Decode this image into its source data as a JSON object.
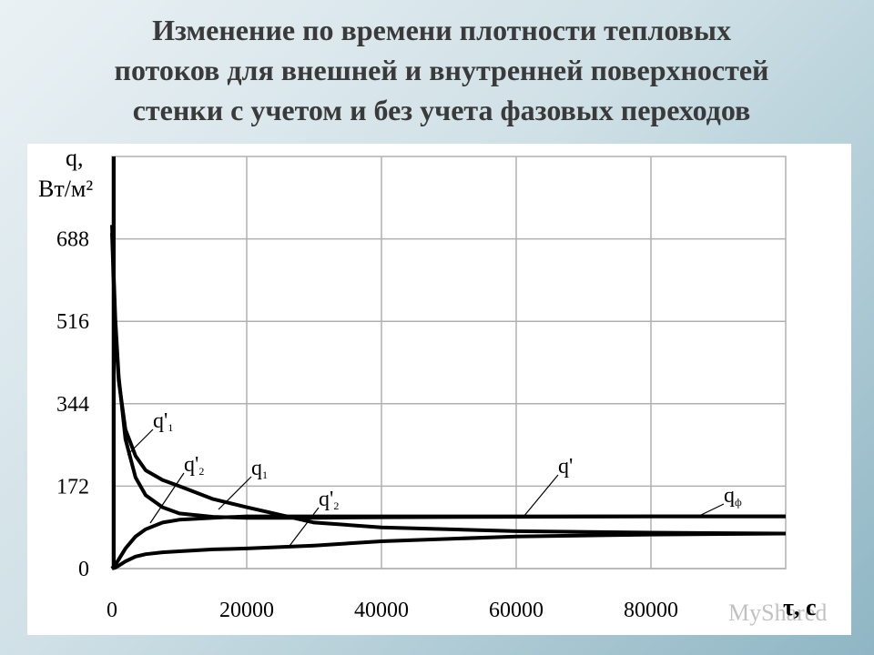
{
  "title_lines": [
    "Изменение по времени плотности тепловых",
    "потоков для внешней и внутренней поверхностей",
    "стенки с учетом и без учета фазовых переходов"
  ],
  "watermark": "MyShared",
  "chart_data": {
    "type": "line",
    "y_label_lines": [
      "q,",
      "Вт/м²"
    ],
    "x_label": "τ, с",
    "xlim": [
      0,
      100000
    ],
    "ylim": [
      0,
      860
    ],
    "xticks": [
      0,
      20000,
      40000,
      60000,
      80000
    ],
    "yticks": [
      0,
      172,
      344,
      516,
      688
    ],
    "grid": true,
    "series": [
      {
        "color": "#000000",
        "x": [
          0,
          500,
          1000,
          2000,
          3500,
          5000,
          7500,
          10000,
          15000,
          20000,
          30000,
          40000,
          60000,
          80000,
          100000
        ],
        "values": [
          717,
          520,
          400,
          270,
          190,
          153,
          128,
          115,
          108,
          106,
          106,
          107,
          108,
          109,
          109
        ]
      },
      {
        "color": "#000000",
        "x": [
          0,
          500,
          1000,
          2000,
          3500,
          5000,
          7500,
          10000,
          15000,
          20000,
          30000,
          40000,
          60000,
          80000,
          100000
        ],
        "values": [
          700,
          500,
          392,
          290,
          235,
          205,
          185,
          172,
          145,
          128,
          96,
          86,
          78,
          75,
          73
        ]
      },
      {
        "color": "#000000",
        "x": [
          0,
          500,
          1000,
          2000,
          3500,
          5000,
          7500,
          10000,
          15000,
          20000,
          30000,
          40000,
          60000,
          80000,
          100000
        ],
        "values": [
          0,
          8,
          19,
          42,
          67,
          82,
          96,
          102,
          106,
          109,
          109,
          109,
          109,
          109,
          109
        ]
      },
      {
        "color": "#000000",
        "x": [
          0,
          500,
          1000,
          2000,
          3500,
          5000,
          7500,
          10000,
          15000,
          20000,
          30000,
          40000,
          60000,
          80000,
          100000
        ],
        "values": [
          0,
          2,
          6,
          15,
          25,
          30,
          34,
          36,
          40,
          42,
          48,
          57,
          67,
          71,
          73
        ]
      }
    ],
    "annotations": [
      {
        "text": "q'",
        "sub": "1"
      },
      {
        "text": "q'",
        "sub": "2"
      },
      {
        "text": "q",
        "sub": "1"
      },
      {
        "text": "q'",
        "sub": "2"
      },
      {
        "text": "q'"
      },
      {
        "text": "q",
        "sub": "ф"
      }
    ]
  }
}
